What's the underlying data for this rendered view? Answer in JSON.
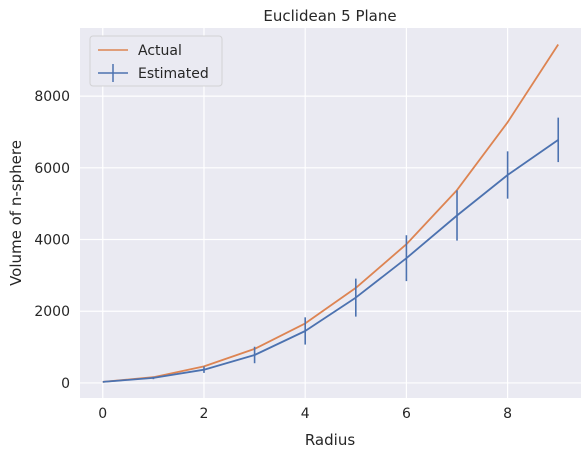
{
  "chart_data": {
    "type": "line",
    "title": "Euclidean 5 Plane",
    "xlabel": "Radius",
    "ylabel": "Volume of n-sphere",
    "xlim": [
      -0.45,
      9.45
    ],
    "ylim": [
      -420,
      9900
    ],
    "xticks": [
      0,
      2,
      4,
      6,
      8
    ],
    "yticks": [
      0,
      2000,
      4000,
      6000,
      8000
    ],
    "grid": true,
    "legend_position": "top-left",
    "x": [
      0,
      1,
      2,
      3,
      4,
      5,
      6,
      7,
      8,
      9
    ],
    "series": [
      {
        "name": "Actual",
        "color": "#dd8452",
        "values": [
          30,
          160,
          460,
          950,
          1660,
          2650,
          3870,
          5380,
          7270,
          9440
        ]
      },
      {
        "name": "Estimated",
        "color": "#4c72b0",
        "values": [
          30,
          140,
          370,
          780,
          1450,
          2380,
          3480,
          4670,
          5800,
          6780
        ],
        "error": [
          0,
          35,
          90,
          230,
          380,
          530,
          640,
          700,
          660,
          620
        ]
      }
    ]
  }
}
